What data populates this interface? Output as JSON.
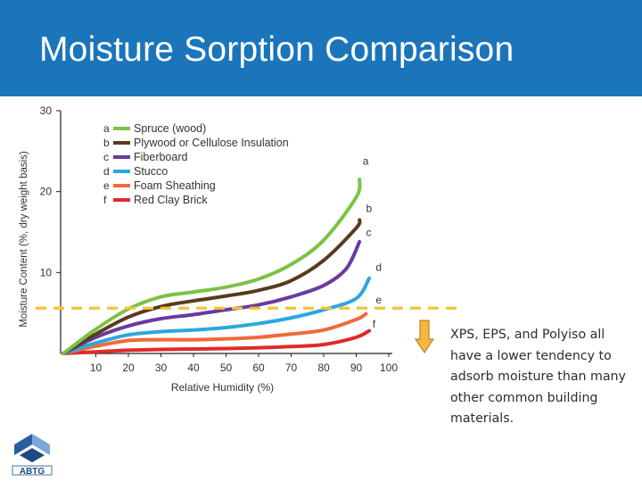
{
  "slide": {
    "title": "Moisture Sorption Comparison",
    "note": "XPS, EPS, and Polyiso all have a lower tendency to adsorb moisture than many other common building materials."
  },
  "logo": {
    "text": "ABTG"
  },
  "colors": {
    "header": "#1a75bb",
    "threshold": "#f4c430",
    "arrow_fill": "#f6b73c",
    "arrow_stroke": "#b8862b"
  },
  "chart_data": {
    "type": "line",
    "xlabel": "Relative Humidity (%)",
    "ylabel": "Moisture Content (%, dry weight basis)",
    "xlim": [
      0,
      100
    ],
    "ylim": [
      0,
      30
    ],
    "xticks": [
      10,
      20,
      30,
      40,
      50,
      60,
      70,
      80,
      90,
      100
    ],
    "yticks": [
      10,
      20,
      30
    ],
    "legend_position": "top-left",
    "threshold_line": {
      "y": 5.6,
      "style": "dashed"
    },
    "series": [
      {
        "letter": "a",
        "name": "Spruce (wood)",
        "color": "#7cc242",
        "points": [
          [
            0,
            0
          ],
          [
            10,
            3
          ],
          [
            20,
            5.5
          ],
          [
            30,
            7
          ],
          [
            40,
            7.6
          ],
          [
            50,
            8.2
          ],
          [
            60,
            9.2
          ],
          [
            70,
            11
          ],
          [
            80,
            14
          ],
          [
            90,
            19.3
          ],
          [
            91,
            21.5
          ]
        ]
      },
      {
        "letter": "b",
        "name": "Plywood or Cellulose Insulation",
        "color": "#5a3a1e",
        "points": [
          [
            0,
            0
          ],
          [
            10,
            2.4
          ],
          [
            20,
            4.5
          ],
          [
            30,
            5.8
          ],
          [
            40,
            6.5
          ],
          [
            50,
            7.1
          ],
          [
            60,
            7.8
          ],
          [
            70,
            9
          ],
          [
            80,
            11.5
          ],
          [
            90,
            15.5
          ],
          [
            91,
            16.5
          ]
        ]
      },
      {
        "letter": "c",
        "name": "Fiberboard",
        "color": "#6a3aa0",
        "points": [
          [
            0,
            0
          ],
          [
            10,
            2
          ],
          [
            20,
            3.4
          ],
          [
            30,
            4.3
          ],
          [
            40,
            4.8
          ],
          [
            50,
            5.4
          ],
          [
            60,
            6
          ],
          [
            70,
            7
          ],
          [
            80,
            8.4
          ],
          [
            87,
            10.5
          ],
          [
            91,
            13.8
          ]
        ]
      },
      {
        "letter": "d",
        "name": "Stucco",
        "color": "#2aa8de",
        "points": [
          [
            0,
            0
          ],
          [
            10,
            1.3
          ],
          [
            20,
            2.3
          ],
          [
            30,
            2.7
          ],
          [
            40,
            2.9
          ],
          [
            50,
            3.2
          ],
          [
            60,
            3.7
          ],
          [
            70,
            4.4
          ],
          [
            80,
            5.4
          ],
          [
            90,
            6.8
          ],
          [
            94,
            9.3
          ]
        ]
      },
      {
        "letter": "e",
        "name": "Foam Sheathing",
        "color": "#f06a3a",
        "points": [
          [
            0,
            0
          ],
          [
            10,
            0.9
          ],
          [
            20,
            1.6
          ],
          [
            30,
            1.7
          ],
          [
            40,
            1.7
          ],
          [
            50,
            1.8
          ],
          [
            60,
            2
          ],
          [
            70,
            2.4
          ],
          [
            80,
            2.9
          ],
          [
            90,
            4.2
          ],
          [
            93,
            4.9
          ]
        ]
      },
      {
        "letter": "f",
        "name": "Red Clay Brick",
        "color": "#e02a2a",
        "points": [
          [
            0,
            0
          ],
          [
            10,
            0.2
          ],
          [
            20,
            0.4
          ],
          [
            30,
            0.5
          ],
          [
            40,
            0.55
          ],
          [
            50,
            0.6
          ],
          [
            60,
            0.7
          ],
          [
            70,
            0.85
          ],
          [
            80,
            1.1
          ],
          [
            90,
            2
          ],
          [
            94,
            2.8
          ]
        ]
      }
    ],
    "curve_labels": [
      {
        "letter": "a",
        "x": 92,
        "y": 23.3
      },
      {
        "letter": "b",
        "x": 93,
        "y": 17.5
      },
      {
        "letter": "c",
        "x": 93,
        "y": 14.5
      },
      {
        "letter": "d",
        "x": 96,
        "y": 10.2
      },
      {
        "letter": "e",
        "x": 96,
        "y": 6.2
      },
      {
        "letter": "f",
        "x": 95,
        "y": 3.2
      }
    ]
  }
}
